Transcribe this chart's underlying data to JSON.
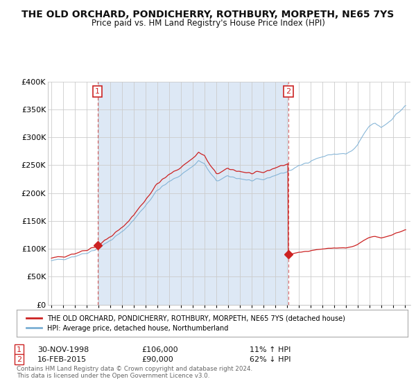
{
  "title": "THE OLD ORCHARD, PONDICHERRY, ROTHBURY, MORPETH, NE65 7YS",
  "subtitle": "Price paid vs. HM Land Registry's House Price Index (HPI)",
  "title_fontsize": 10,
  "subtitle_fontsize": 8.5,
  "ylim": [
    0,
    400000
  ],
  "yticks": [
    0,
    50000,
    100000,
    150000,
    200000,
    250000,
    300000,
    350000,
    400000
  ],
  "ytick_labels": [
    "£0",
    "£50K",
    "£100K",
    "£150K",
    "£200K",
    "£250K",
    "£300K",
    "£350K",
    "£400K"
  ],
  "xlim_min": 1994.7,
  "xlim_max": 2025.5,
  "xticks": [
    1995,
    1996,
    1997,
    1998,
    1999,
    2000,
    2001,
    2002,
    2003,
    2004,
    2005,
    2006,
    2007,
    2008,
    2009,
    2010,
    2011,
    2012,
    2013,
    2014,
    2015,
    2016,
    2017,
    2018,
    2019,
    2020,
    2021,
    2022,
    2023,
    2024,
    2025
  ],
  "sale1_x": 1998.917,
  "sale1_y": 106000,
  "sale2_x": 2015.125,
  "sale2_y": 90000,
  "line1_color": "#cc2222",
  "line2_color": "#7bafd4",
  "shade_color": "#dde8f5",
  "grid_color": "#cccccc",
  "bg_color": "#ffffff",
  "line1_label": "THE OLD ORCHARD, PONDICHERRY, ROTHBURY, MORPETH, NE65 7YS (detached house)",
  "line2_label": "HPI: Average price, detached house, Northumberland",
  "sale1_label": "1",
  "sale2_label": "2",
  "sale1_date_str": "30-NOV-1998",
  "sale1_price_str": "£106,000",
  "sale1_hpi_str": "11% ↑ HPI",
  "sale2_date_str": "16-FEB-2015",
  "sale2_price_str": "£90,000",
  "sale2_hpi_str": "62% ↓ HPI",
  "footer": "Contains HM Land Registry data © Crown copyright and database right 2024.\nThis data is licensed under the Open Government Licence v3.0."
}
